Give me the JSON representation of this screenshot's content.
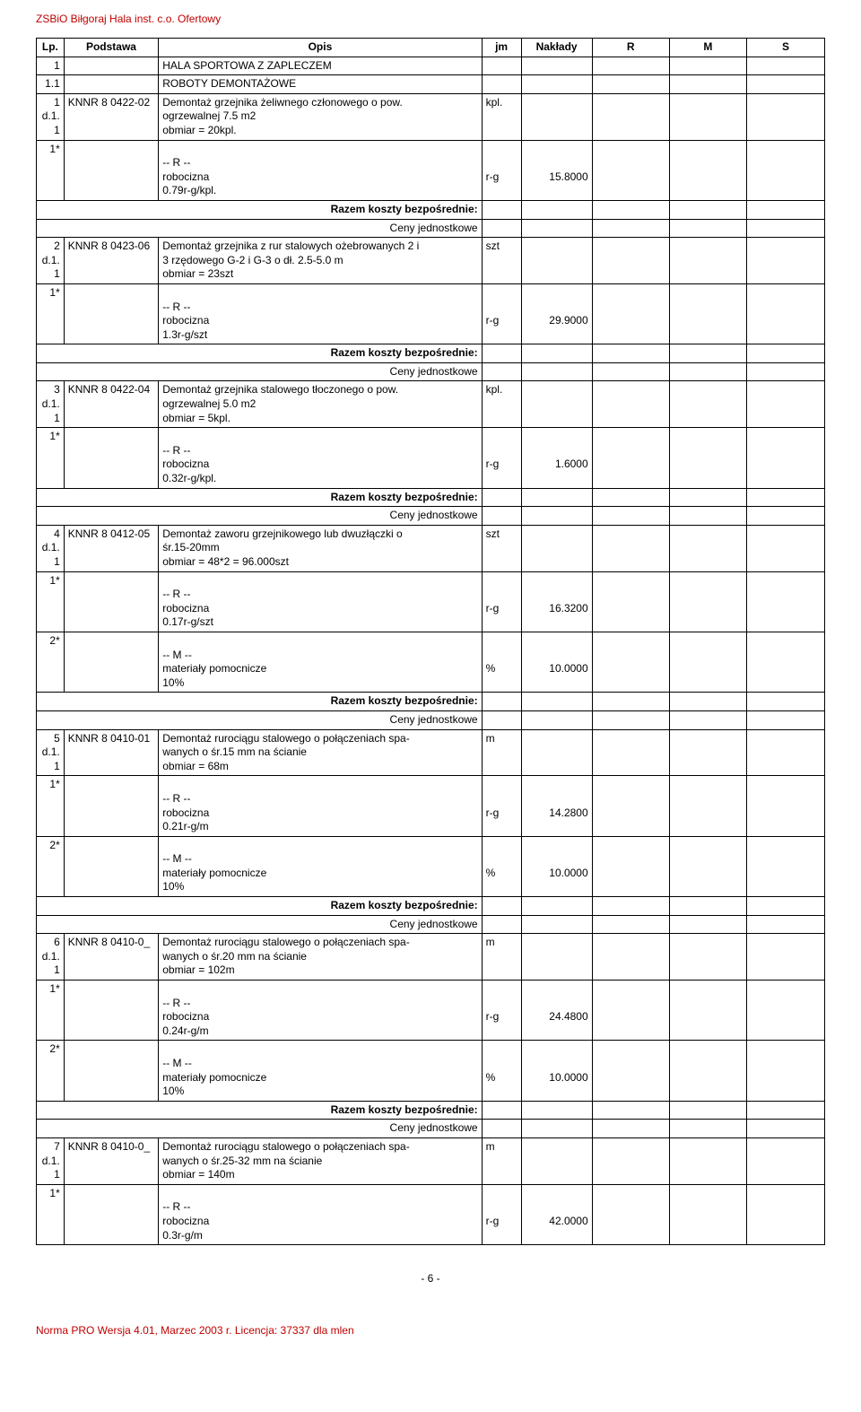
{
  "doc_header": "ZSBiO Biłgoraj Hala inst. c.o. Ofertowy",
  "columns": {
    "lp": "Lp.",
    "podstawa": "Podstawa",
    "opis": "Opis",
    "jm": "jm",
    "naklady": "Nakłady",
    "r": "R",
    "m": "M",
    "s": "S"
  },
  "section1": {
    "num": "1",
    "title": "HALA SPORTOWA Z ZAPLECZEM"
  },
  "section11": {
    "num": "1.1",
    "title": "ROBOTY DEMONTAŻOWE"
  },
  "labels": {
    "r_dash": "-- R --",
    "m_dash": "-- M --",
    "robocizna": "robocizna",
    "mat_pom": "materiały pomocnicze",
    "pct10": "10%",
    "razem": "Razem koszty bezpośrednie:",
    "ceny": "Ceny jednostkowe",
    "rg": "r-g",
    "pct": "%",
    "szt": "szt",
    "kpl": "kpl.",
    "m": "m"
  },
  "items": {
    "i1": {
      "lp": "1",
      "d": "d.1.1",
      "pod": "KNNR 8 0422-02",
      "opis_l1": "Demontaż grzejnika żeliwnego członowego o pow.",
      "opis_l2": "ogrzewalnej 7.5 m2",
      "obmiar": "obmiar = 20kpl.",
      "jm": "kpl.",
      "rob_rate": "0.79r-g/kpl.",
      "rob_val": "15.8000"
    },
    "i2": {
      "lp": "2",
      "d": "d.1.1",
      "pod": "KNNR 8 0423-06",
      "opis_l1": "Demontaż grzejnika z rur stalowych ożebrowanych 2 i",
      "opis_l2": "3 rzędowego G-2 i G-3 o dł. 2.5-5.0 m",
      "obmiar": "obmiar = 23szt",
      "jm": "szt",
      "rob_rate": "1.3r-g/szt",
      "rob_val": "29.9000"
    },
    "i3": {
      "lp": "3",
      "d": "d.1.1",
      "pod": "KNNR 8 0422-04",
      "opis_l1": "Demontaż grzejnika stalowego tłoczonego o pow.",
      "opis_l2": "ogrzewalnej 5.0 m2",
      "obmiar": "obmiar = 5kpl.",
      "jm": "kpl.",
      "rob_rate": "0.32r-g/kpl.",
      "rob_val": "1.6000"
    },
    "i4": {
      "lp": "4",
      "d": "d.1.1",
      "pod": "KNNR 8 0412-05",
      "opis_l1": "Demontaż zaworu grzejnikowego lub dwuzłączki o",
      "opis_l2": "śr.15-20mm",
      "obmiar": "obmiar = 48*2 = 96.000szt",
      "jm": "szt",
      "rob_rate": "0.17r-g/szt",
      "rob_val": "16.3200",
      "mat_val": "10.0000"
    },
    "i5": {
      "lp": "5",
      "d": "d.1.1",
      "pod": "KNNR 8 0410-01",
      "opis_l1": "Demontaż rurociągu stalowego o połączeniach spa-",
      "opis_l2": "wanych  o śr.15 mm na ścianie",
      "obmiar": "obmiar = 68m",
      "jm": "m",
      "rob_rate": "0.21r-g/m",
      "rob_val": "14.2800",
      "mat_val": "10.0000"
    },
    "i6": {
      "lp": "6",
      "d": "d.1.1",
      "pod": "KNNR 8 0410-0_",
      "opis_l1": "Demontaż rurociągu stalowego o połączeniach spa-",
      "opis_l2": "wanych  o śr.20 mm na ścianie",
      "obmiar": "obmiar = 102m",
      "jm": "m",
      "rob_rate": "0.24r-g/m",
      "rob_val": "24.4800",
      "mat_val": "10.0000"
    },
    "i7": {
      "lp": "7",
      "d": "d.1.1",
      "pod": "KNNR 8 0410-0_",
      "opis_l1": "Demontaż rurociągu stalowego o połączeniach spa-",
      "opis_l2": "wanych  o śr.25-32 mm na ścianie",
      "obmiar": "obmiar = 140m",
      "jm": "m",
      "rob_rate": "0.3r-g/m",
      "rob_val": "42.0000"
    }
  },
  "page_num": "- 6 -",
  "doc_footer": "Norma PRO Wersja 4.01, Marzec 2003 r. Licencja: 37337 dla mlen"
}
